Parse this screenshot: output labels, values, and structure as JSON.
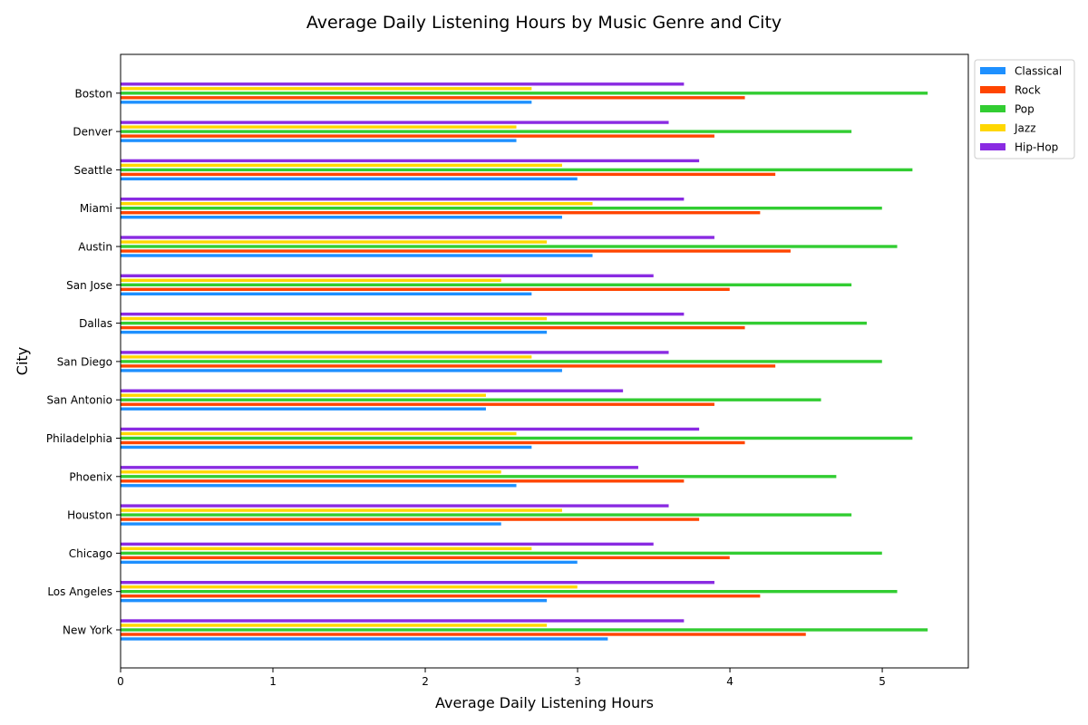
{
  "chart_data": {
    "type": "bar",
    "orientation": "horizontal",
    "title": "Average Daily Listening Hours by Music Genre and City",
    "xlabel": "Average Daily Listening Hours",
    "ylabel": "City",
    "xlim": [
      0,
      5.565
    ],
    "xticks": [
      "0",
      "1",
      "2",
      "3",
      "4",
      "5"
    ],
    "grid": false,
    "legend_position": "outside-top-right",
    "categories": [
      "New York",
      "Los Angeles",
      "Chicago",
      "Houston",
      "Phoenix",
      "Philadelphia",
      "San Antonio",
      "San Diego",
      "Dallas",
      "San Jose",
      "Austin",
      "Miami",
      "Seattle",
      "Denver",
      "Boston"
    ],
    "series": [
      {
        "name": "Classical",
        "color": "#1E90FF",
        "values": [
          3.2,
          2.8,
          3.0,
          2.5,
          2.6,
          2.7,
          2.4,
          2.9,
          2.8,
          2.7,
          3.1,
          2.9,
          3.0,
          2.6,
          2.7
        ]
      },
      {
        "name": "Rock",
        "color": "#FF4500",
        "values": [
          4.5,
          4.2,
          4.0,
          3.8,
          3.7,
          4.1,
          3.9,
          4.3,
          4.1,
          4.0,
          4.4,
          4.2,
          4.3,
          3.9,
          4.1
        ]
      },
      {
        "name": "Pop",
        "color": "#32CD32",
        "values": [
          5.3,
          5.1,
          5.0,
          4.8,
          4.7,
          5.2,
          4.6,
          5.0,
          4.9,
          4.8,
          5.1,
          5.0,
          5.2,
          4.8,
          5.3
        ]
      },
      {
        "name": "Jazz",
        "color": "#FFD700",
        "values": [
          2.8,
          3.0,
          2.7,
          2.9,
          2.5,
          2.6,
          2.4,
          2.7,
          2.8,
          2.5,
          2.8,
          3.1,
          2.9,
          2.6,
          2.7
        ]
      },
      {
        "name": "Hip-Hop",
        "color": "#8A2BE2",
        "values": [
          3.7,
          3.9,
          3.5,
          3.6,
          3.4,
          3.8,
          3.3,
          3.6,
          3.7,
          3.5,
          3.9,
          3.7,
          3.8,
          3.6,
          3.7
        ]
      }
    ]
  }
}
